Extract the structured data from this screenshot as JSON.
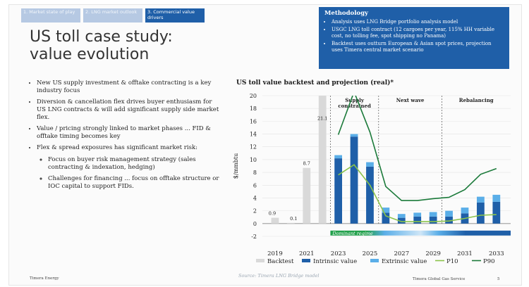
{
  "tabs": [
    {
      "label": "1. Market state of play",
      "active": false
    },
    {
      "label": "2. LNG market outlook",
      "active": false
    },
    {
      "label": "3. Commercial value drivers",
      "active": true
    }
  ],
  "title_line1": "US toll case study:",
  "title_line2": "value evolution",
  "methodology": {
    "heading": "Methodology",
    "items": [
      "Analysis uses LNG Bridge portfolio analysis model",
      "USGC LNG toll contract (12 cargoes per year, 115% HH variable cost, no tolling fee, spot shipping no Panama)",
      "Backtest uses outturn European & Asian spot prices, projection uses Timera central market scenario"
    ]
  },
  "bullets": {
    "b1": "New US supply investment & offtake contracting is a key industry focus",
    "b2": "Diversion & cancellation flex drives buyer enthusiasm for US LNG contracts & will add significant supply side market flex.",
    "b3": "Value / pricing strongly linked to market phases ... FID & offtake timing becomes key",
    "b4": "Flex & spread exposures has significant market risk:",
    "s1": "Focus on buyer risk management strategy (sales contracting & indexation, hedging)",
    "s2": "Challenges for financing ... focus on offtake structure or IOC capital to support FIDs."
  },
  "chart_title": "US toll value backtest and projection (real)*",
  "chart_data": {
    "type": "bar",
    "ylabel": "$/mmbtu",
    "ylim": [
      -2,
      20
    ],
    "yticks": [
      -2,
      0,
      2,
      4,
      6,
      8,
      10,
      12,
      14,
      16,
      18,
      20
    ],
    "xticks": [
      2019,
      2021,
      2023,
      2025,
      2027,
      2029,
      2031,
      2033
    ],
    "xlim": [
      2018.2,
      2033.9
    ],
    "colors": {
      "backtest": "#d9d9d9",
      "intrinsic": "#1f5fa8",
      "extrinsic": "#5aaee8",
      "p10": "#8bc34a",
      "p90": "#1b7a3a",
      "regime": "#22a04b",
      "regime_label": "#ffffff"
    },
    "backtest": [
      {
        "x": 2019,
        "value": 0.9,
        "label": "0.9"
      },
      {
        "x": 2020,
        "value": 0.1,
        "label": "0.1"
      },
      {
        "x": 2021,
        "value": 8.7,
        "label": "8.7"
      },
      {
        "x": 2022,
        "value": 21.1,
        "label": "21.1"
      }
    ],
    "projection": [
      {
        "x": 2023.0,
        "intrinsic": 10.2,
        "extrinsic": 0.5
      },
      {
        "x": 2024.0,
        "intrinsic": 13.6,
        "extrinsic": 0.4
      },
      {
        "x": 2025.0,
        "intrinsic": 8.9,
        "extrinsic": 0.7
      },
      {
        "x": 2026.0,
        "intrinsic": 1.7,
        "extrinsic": 0.8
      },
      {
        "x": 2027.0,
        "intrinsic": 0.9,
        "extrinsic": 0.6
      },
      {
        "x": 2028.0,
        "intrinsic": 1.1,
        "extrinsic": 0.6
      },
      {
        "x": 2029.0,
        "intrinsic": 1.1,
        "extrinsic": 0.7
      },
      {
        "x": 2030.0,
        "intrinsic": 1.1,
        "extrinsic": 0.9
      },
      {
        "x": 2031.0,
        "intrinsic": 1.6,
        "extrinsic": 0.9
      },
      {
        "x": 2032.0,
        "intrinsic": 3.3,
        "extrinsic": 0.9
      },
      {
        "x": 2033.0,
        "intrinsic": 3.4,
        "extrinsic": 1.1
      }
    ],
    "p10": [
      {
        "x": 2023.0,
        "y": 7.6
      },
      {
        "x": 2024.0,
        "y": 9.2
      },
      {
        "x": 2025.0,
        "y": 6.0
      },
      {
        "x": 2026.0,
        "y": 1.2
      },
      {
        "x": 2027.0,
        "y": 0.3
      },
      {
        "x": 2028.0,
        "y": 0.3
      },
      {
        "x": 2029.0,
        "y": 0.3
      },
      {
        "x": 2030.0,
        "y": 0.4
      },
      {
        "x": 2031.0,
        "y": 0.8
      },
      {
        "x": 2032.0,
        "y": 1.3
      },
      {
        "x": 2033.0,
        "y": 1.4
      }
    ],
    "p90": [
      {
        "x": 2023.0,
        "y": 13.9
      },
      {
        "x": 2024.0,
        "y": 20.6
      },
      {
        "x": 2025.0,
        "y": 14.3
      },
      {
        "x": 2026.0,
        "y": 5.8
      },
      {
        "x": 2027.0,
        "y": 3.6
      },
      {
        "x": 2028.0,
        "y": 3.6
      },
      {
        "x": 2029.0,
        "y": 3.9
      },
      {
        "x": 2030.0,
        "y": 4.1
      },
      {
        "x": 2031.0,
        "y": 5.3
      },
      {
        "x": 2032.0,
        "y": 7.7
      },
      {
        "x": 2033.0,
        "y": 8.6
      }
    ],
    "phases": [
      {
        "label_lines": [
          "Supply",
          "constrained"
        ],
        "from": 2022.5,
        "to": 2025.55
      },
      {
        "label_lines": [
          "Next wave"
        ],
        "from": 2025.55,
        "to": 2029.55
      },
      {
        "label_lines": [
          "Rebalancing"
        ],
        "from": 2029.55,
        "to": 2033.9
      }
    ],
    "regime_label": "Dominant regime",
    "regime_from": 2022.5,
    "regime_to": 2033.9,
    "legend": [
      "Backtest",
      "Intrinsic value",
      "Extrinsic value",
      "P10",
      "P90"
    ],
    "legend_position": "bottom"
  },
  "footer": {
    "left": "Timera Energy",
    "source": "Source: Timera LNG Bridge model",
    "right": "Timera Global Gas Service",
    "page": "5"
  }
}
